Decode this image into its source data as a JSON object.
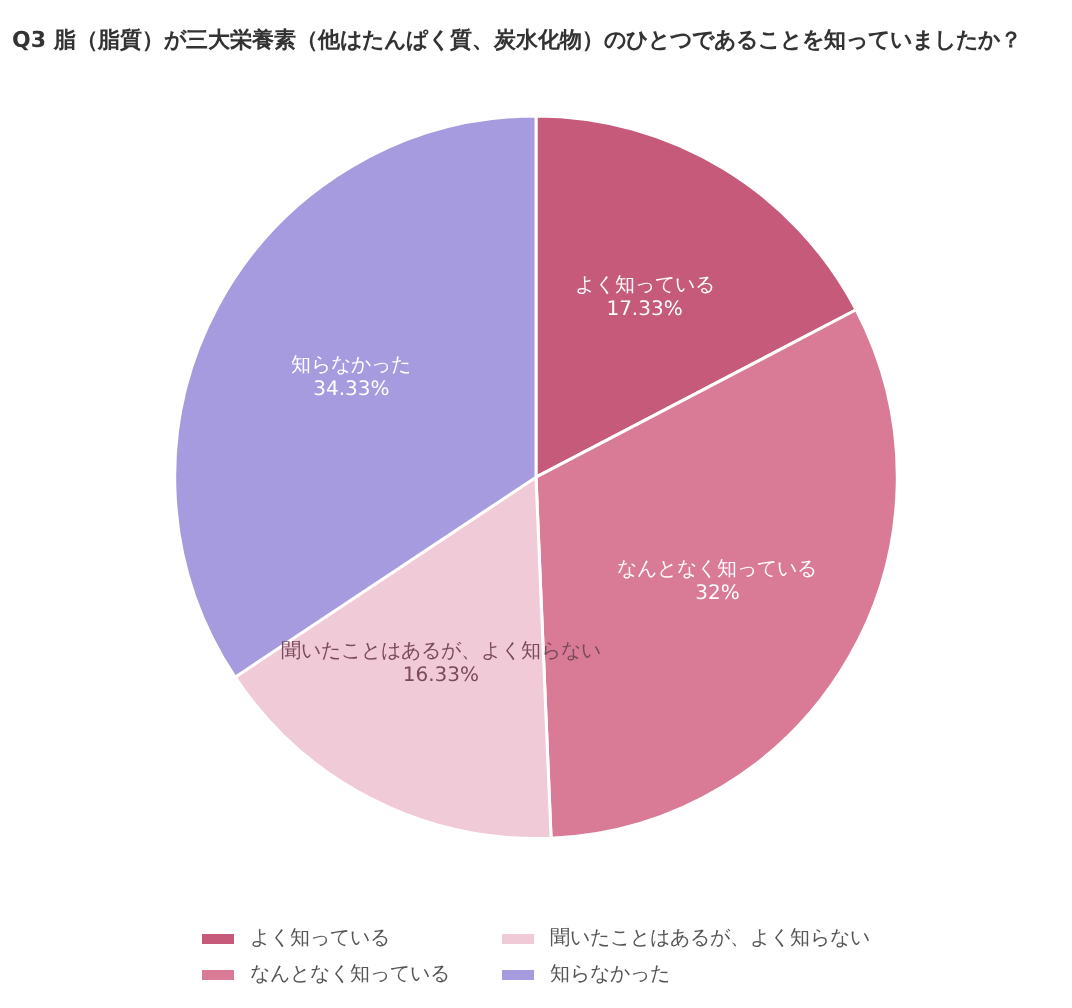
{
  "chart_data": {
    "type": "pie",
    "title": "Q3 脂（脂質）が三大栄養素（他はたんぱく質、炭水化物）のひとつであることを知っていましたか？",
    "categories": [
      "よく知っている",
      "なんとなく知っている",
      "聞いたことはあるが、よく知らない",
      "知らなかった"
    ],
    "values": [
      17.33,
      32,
      16.33,
      34.33
    ],
    "value_labels": [
      "17.33%",
      "32%",
      "16.33%",
      "34.33%"
    ],
    "colors": [
      "#c65a7b",
      "#d97a97",
      "#f1cad7",
      "#a69bdf"
    ],
    "legend": "bottom"
  }
}
